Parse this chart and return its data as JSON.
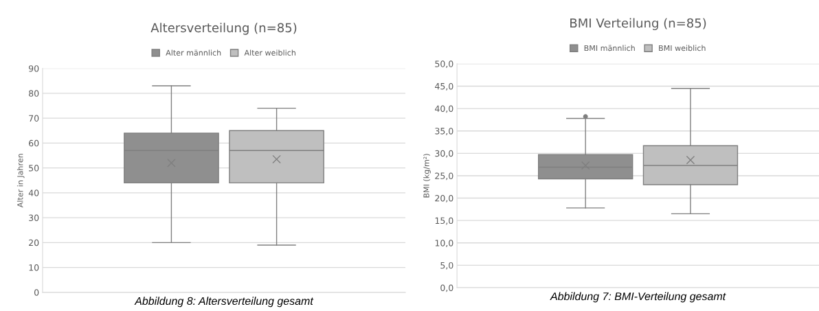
{
  "chart_data": [
    {
      "type": "box",
      "title": "Altersverteilung (n=85)",
      "ylabel": "Alter in Jahren",
      "categories": [
        null
      ],
      "ylim": [
        0,
        90
      ],
      "yticks": [
        0,
        10,
        20,
        30,
        40,
        50,
        60,
        70,
        80,
        90
      ],
      "grid": "y",
      "legend": "top",
      "annotations": [
        "Abbildung 8: Altersverteilung gesamt"
      ],
      "series": [
        {
          "name": "Alter männlich",
          "color": "#8f8f8f",
          "boxes": [
            {
              "low": 20,
              "q1": 44,
              "median": 57,
              "q3": 64,
              "high": 83,
              "mean": 52
            }
          ]
        },
        {
          "name": "Alter weiblich",
          "color": "#bfbfbf",
          "boxes": [
            {
              "low": 19,
              "q1": 44,
              "median": 57,
              "q3": 65,
              "high": 74,
              "mean": 53.5
            }
          ]
        }
      ]
    },
    {
      "type": "box",
      "title": "BMI Verteilung (n=85)",
      "ylabel": "BMI (kg/m²)",
      "categories": [
        null
      ],
      "ylim": [
        0,
        50
      ],
      "yticks": [
        {
          "value": 0,
          "label": "0,0"
        },
        {
          "value": 5,
          "label": "5,0"
        },
        {
          "value": 10,
          "label": "10,0"
        },
        {
          "value": 15,
          "label": "15,0"
        },
        {
          "value": 20,
          "label": "20,0"
        },
        {
          "value": 25,
          "label": "25,0"
        },
        {
          "value": 30,
          "label": "30,0"
        },
        {
          "value": 35,
          "label": "35,0"
        },
        {
          "value": 40,
          "label": "40,0"
        },
        {
          "value": 45,
          "label": "45,0"
        },
        {
          "value": 50,
          "label": "50,0"
        }
      ],
      "grid": "y",
      "legend": "top",
      "annotations": [
        "Abbildung 7: BMI-Verteilung gesamt"
      ],
      "series": [
        {
          "name": "BMI männlich",
          "color": "#8f8f8f",
          "boxes": [
            {
              "low": 17.8,
              "q1": 24.3,
              "median": 26.9,
              "q3": 29.7,
              "high": 37.8,
              "mean": 27.3,
              "outliers": [
                38.2
              ]
            }
          ]
        },
        {
          "name": "BMI weiblich",
          "color": "#bfbfbf",
          "boxes": [
            {
              "low": 16.5,
              "q1": 23.0,
              "median": 27.3,
              "q3": 31.7,
              "high": 44.5,
              "mean": 28.5
            }
          ]
        }
      ]
    }
  ]
}
